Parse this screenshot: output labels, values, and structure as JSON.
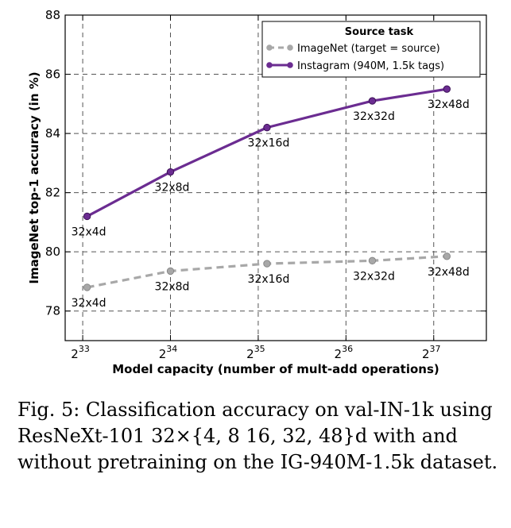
{
  "chart_data": {
    "type": "line",
    "xlabel": "Model capacity (number of mult-add operations)",
    "ylabel": "ImageNet top-1 accuracy (in %)",
    "x_scale": "log2",
    "xlim_exponent": [
      32.8,
      37.6
    ],
    "x_ticks": [
      {
        "base": "2",
        "exp": "33",
        "value_exponent": 33
      },
      {
        "base": "2",
        "exp": "34",
        "value_exponent": 34
      },
      {
        "base": "2",
        "exp": "35",
        "value_exponent": 35
      },
      {
        "base": "2",
        "exp": "36",
        "value_exponent": 36
      },
      {
        "base": "2",
        "exp": "37",
        "value_exponent": 37
      }
    ],
    "ylim": [
      77,
      88
    ],
    "y_ticks": [
      "78",
      "80",
      "82",
      "84",
      "86",
      "88"
    ],
    "grid": true,
    "legend": {
      "title": "Source task",
      "placement": "top-right",
      "entries": [
        "ImageNet (target = source)",
        "Instagram (940M, 1.5k tags)"
      ]
    },
    "series": [
      {
        "name": "ImageNet (target = source)",
        "color": "#a8a8a8",
        "style": "dashed",
        "points": [
          {
            "x_exponent": 33.05,
            "y": 78.8,
            "label": "32x4d"
          },
          {
            "x_exponent": 34.0,
            "y": 79.35,
            "label": "32x8d"
          },
          {
            "x_exponent": 35.1,
            "y": 79.6,
            "label": "32x16d"
          },
          {
            "x_exponent": 36.3,
            "y": 79.7,
            "label": "32x32d"
          },
          {
            "x_exponent": 37.15,
            "y": 79.85,
            "label": "32x48d"
          }
        ]
      },
      {
        "name": "Instagram (940M, 1.5k tags)",
        "color": "#6b2c91",
        "style": "solid",
        "points": [
          {
            "x_exponent": 33.05,
            "y": 81.2,
            "label": "32x4d"
          },
          {
            "x_exponent": 34.0,
            "y": 82.7,
            "label": "32x8d"
          },
          {
            "x_exponent": 35.1,
            "y": 84.2,
            "label": "32x16d"
          },
          {
            "x_exponent": 36.3,
            "y": 85.1,
            "label": "32x32d"
          },
          {
            "x_exponent": 37.15,
            "y": 85.5,
            "label": "32x48d"
          }
        ]
      }
    ]
  },
  "caption": "Fig. 5: Classification accuracy on val-IN-1k using ResNeXt-101 32×{4, 8 16, 32, 48}d with and without pretraining on the IG-940M-1.5k dataset."
}
